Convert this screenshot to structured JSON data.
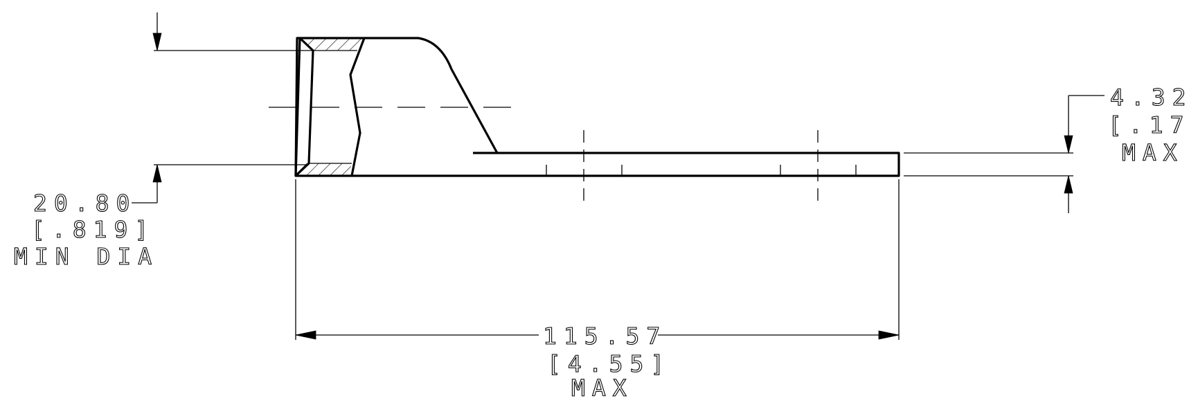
{
  "dimensions": {
    "overall_length": {
      "value": "115.57",
      "inch": "[4.55]",
      "qualifier": "MAX"
    },
    "inner_diameter": {
      "value": "20.80",
      "inch": "[.819]",
      "qualifier": "MIN DIA"
    },
    "tongue_thickness": {
      "value": "4.32",
      "inch": "[.17]",
      "qualifier": "MAX"
    }
  }
}
